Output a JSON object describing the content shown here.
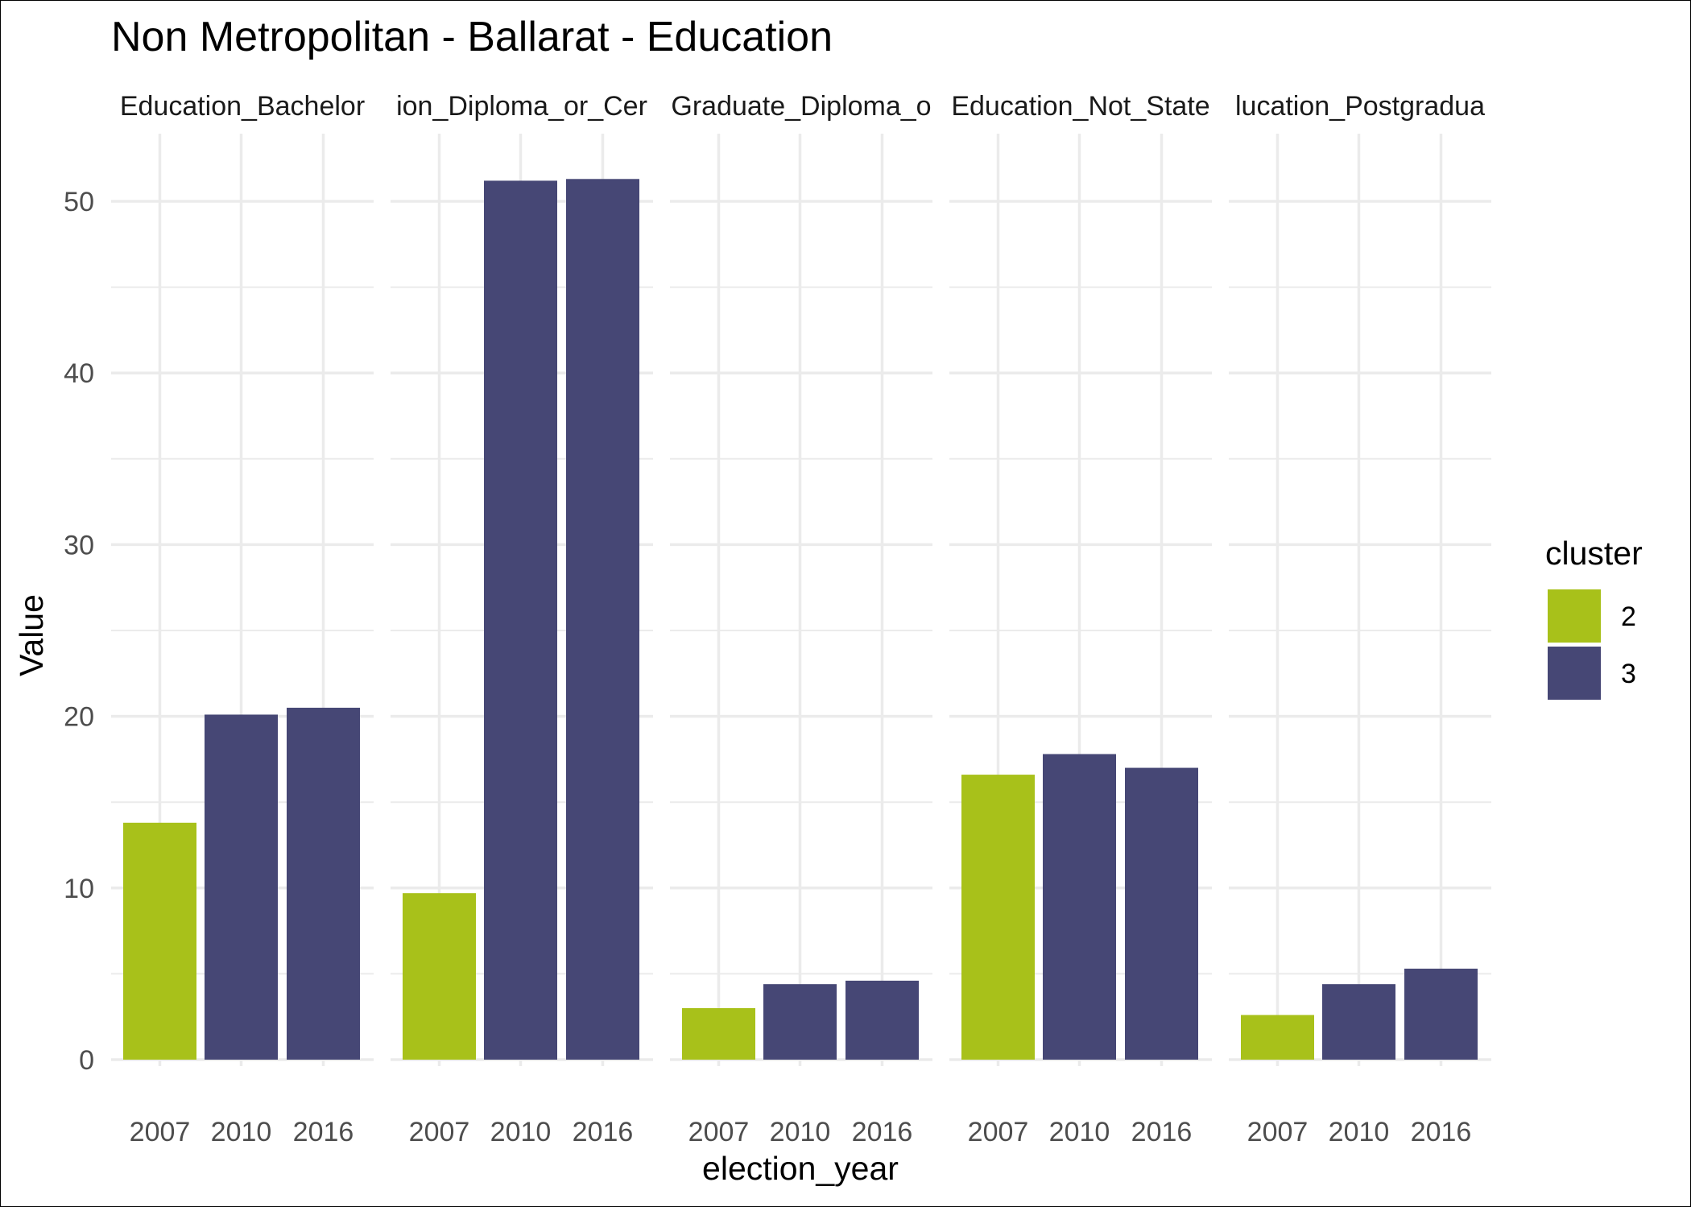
{
  "chart_data": {
    "type": "bar",
    "title": "Non Metropolitan - Ballarat - Education",
    "xlabel": "election_year",
    "ylabel": "Value",
    "ylim": [
      0,
      54
    ],
    "yticks": [
      0,
      10,
      20,
      30,
      40,
      50
    ],
    "grid": true,
    "legend": {
      "title": "cluster",
      "placement": "right",
      "entries": [
        {
          "label": "2",
          "color": "#a8c11a"
        },
        {
          "label": "3",
          "color": "#464775"
        }
      ]
    },
    "facets": [
      {
        "label": "Education_Bachelor",
        "bars": [
          {
            "x": "2007",
            "value": 13.8,
            "cluster": "2"
          },
          {
            "x": "2010",
            "value": 20.1,
            "cluster": "3"
          },
          {
            "x": "2016",
            "value": 20.5,
            "cluster": "3"
          }
        ]
      },
      {
        "label": "ion_Diploma_or_Cer",
        "bars": [
          {
            "x": "2007",
            "value": 9.7,
            "cluster": "2"
          },
          {
            "x": "2010",
            "value": 51.2,
            "cluster": "3"
          },
          {
            "x": "2016",
            "value": 51.3,
            "cluster": "3"
          }
        ]
      },
      {
        "label": "Graduate_Diploma_o",
        "bars": [
          {
            "x": "2007",
            "value": 3.0,
            "cluster": "2"
          },
          {
            "x": "2010",
            "value": 4.4,
            "cluster": "3"
          },
          {
            "x": "2016",
            "value": 4.6,
            "cluster": "3"
          }
        ]
      },
      {
        "label": "Education_Not_State",
        "bars": [
          {
            "x": "2007",
            "value": 16.6,
            "cluster": "2"
          },
          {
            "x": "2010",
            "value": 17.8,
            "cluster": "3"
          },
          {
            "x": "2016",
            "value": 17.0,
            "cluster": "3"
          }
        ]
      },
      {
        "label": "lucation_Postgradua",
        "bars": [
          {
            "x": "2007",
            "value": 2.6,
            "cluster": "2"
          },
          {
            "x": "2010",
            "value": 4.4,
            "cluster": "3"
          },
          {
            "x": "2016",
            "value": 5.3,
            "cluster": "3"
          }
        ]
      }
    ]
  }
}
